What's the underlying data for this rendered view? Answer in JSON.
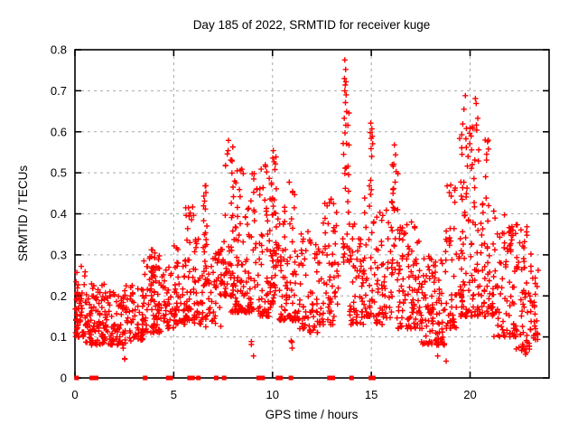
{
  "chart_data": {
    "type": "scatter",
    "title": "Day 185 of 2022, SRMTID for receiver kuge",
    "xlabel": "GPS time / hours",
    "ylabel": "SRMTID / TECUs",
    "xlim": [
      0,
      24
    ],
    "ylim": [
      0,
      0.8
    ],
    "xticks": [
      0,
      5,
      10,
      15,
      20
    ],
    "yticks": [
      0,
      0.1,
      0.2,
      0.3,
      0.4,
      0.5,
      0.6,
      0.7,
      0.8
    ],
    "grid": true,
    "legend": null,
    "marker": {
      "shape": "plus",
      "color": "#ff0000",
      "size": 7
    },
    "colors": {
      "background": "#ffffff",
      "axis": "#000000",
      "grid": "#a8a8a8",
      "points": "#ff0000"
    },
    "series": [
      {
        "name": "SRMTID",
        "peak_points": [
          [
            13.66,
            0.775
          ],
          [
            13.7,
            0.752
          ],
          [
            13.64,
            0.73
          ],
          [
            13.72,
            0.722
          ],
          [
            13.68,
            0.714
          ],
          [
            13.66,
            0.7
          ],
          [
            13.73,
            0.69
          ],
          [
            13.69,
            0.671
          ],
          [
            13.75,
            0.649
          ],
          [
            13.63,
            0.633
          ],
          [
            13.71,
            0.616
          ],
          [
            13.67,
            0.597
          ],
          [
            13.74,
            0.571
          ],
          [
            13.6,
            0.545
          ],
          [
            14.97,
            0.621
          ],
          [
            15.03,
            0.607
          ],
          [
            14.95,
            0.598
          ],
          [
            15.05,
            0.589
          ],
          [
            15.0,
            0.584
          ],
          [
            15.07,
            0.571
          ],
          [
            14.99,
            0.559
          ],
          [
            15.02,
            0.54
          ],
          [
            16.17,
            0.568
          ],
          [
            16.23,
            0.544
          ],
          [
            16.14,
            0.521
          ],
          [
            16.26,
            0.503
          ],
          [
            19.76,
            0.688
          ],
          [
            20.27,
            0.681
          ],
          [
            20.31,
            0.669
          ],
          [
            19.69,
            0.655
          ],
          [
            20.39,
            0.633
          ],
          [
            19.63,
            0.619
          ],
          [
            20.34,
            0.604
          ],
          [
            19.58,
            0.593
          ],
          [
            19.98,
            0.571
          ],
          [
            20.44,
            0.556
          ],
          [
            19.9,
            0.54
          ],
          [
            20.88,
            0.576
          ],
          [
            20.93,
            0.558
          ],
          [
            20.83,
            0.531
          ],
          [
            5.83,
            0.402
          ],
          [
            5.9,
            0.386
          ],
          [
            6.59,
            0.468
          ],
          [
            6.63,
            0.452
          ],
          [
            6.56,
            0.431
          ],
          [
            7.77,
            0.579
          ],
          [
            7.99,
            0.563
          ],
          [
            7.71,
            0.546
          ],
          [
            7.93,
            0.531
          ],
          [
            7.62,
            0.517
          ],
          [
            8.21,
            0.505
          ],
          [
            8.52,
            0.498
          ],
          [
            9.63,
            0.519
          ],
          [
            9.71,
            0.502
          ],
          [
            10.04,
            0.554
          ],
          [
            10.01,
            0.536
          ],
          [
            10.08,
            0.527
          ],
          [
            10.12,
            0.508
          ],
          [
            11.02,
            0.452
          ],
          [
            12.96,
            0.436
          ],
          [
            19.02,
            0.47
          ],
          [
            18.95,
            0.452
          ],
          [
            3.92,
            0.312
          ],
          [
            23.08,
            0.302
          ],
          [
            0.32,
            0.272
          ]
        ],
        "zero_axis_points_hours": [
          0.08,
          0.85,
          0.95,
          1.07,
          3.55,
          4.72,
          4.85,
          5.8,
          5.95,
          6.25,
          7.15,
          7.55,
          9.3,
          9.4,
          9.5,
          10.28,
          10.4,
          10.93,
          12.88,
          13.05,
          14.0,
          14.98,
          15.1
        ],
        "cluster_distribution": {
          "note": "Dense scatter approximated by columns: [x_start, x_end, y_min, y_max, count, bottom_bias_exponent]",
          "columns": [
            [
              0.03,
              0.15,
              0.12,
              0.27,
              12,
              1.2
            ],
            [
              0.0,
              0.6,
              0.1,
              0.27,
              45,
              1.6
            ],
            [
              0.5,
              1.6,
              0.08,
              0.23,
              90,
              1.4
            ],
            [
              1.5,
              2.6,
              0.08,
              0.21,
              75,
              1.3
            ],
            [
              2.4,
              2.6,
              0.04,
              0.08,
              3,
              1.0
            ],
            [
              2.5,
              3.5,
              0.09,
              0.23,
              65,
              1.3
            ],
            [
              3.4,
              4.3,
              0.11,
              0.31,
              70,
              1.5
            ],
            [
              3.7,
              4.05,
              0.2,
              0.33,
              12,
              1.3
            ],
            [
              4.2,
              5.1,
              0.11,
              0.27,
              55,
              1.4
            ],
            [
              5.0,
              5.6,
              0.13,
              0.33,
              40,
              1.5
            ],
            [
              5.6,
              6.1,
              0.14,
              0.42,
              40,
              1.8
            ],
            [
              6.0,
              6.5,
              0.13,
              0.34,
              35,
              1.5
            ],
            [
              6.5,
              6.75,
              0.22,
              0.47,
              22,
              1.6
            ],
            [
              6.6,
              7.4,
              0.12,
              0.31,
              45,
              1.4
            ],
            [
              7.3,
              7.65,
              0.2,
              0.46,
              18,
              1.5
            ],
            [
              7.55,
              8.1,
              0.2,
              0.58,
              30,
              1.9
            ],
            [
              7.9,
              9.35,
              0.16,
              0.52,
              130,
              1.9
            ],
            [
              8.9,
              9.1,
              0.05,
              0.09,
              3,
              1.0
            ],
            [
              9.3,
              9.9,
              0.15,
              0.52,
              55,
              1.8
            ],
            [
              9.9,
              10.25,
              0.18,
              0.555,
              45,
              1.7
            ],
            [
              10.2,
              11.3,
              0.14,
              0.48,
              90,
              1.9
            ],
            [
              10.9,
              11.1,
              0.07,
              0.1,
              3,
              1.0
            ],
            [
              11.3,
              12.5,
              0.11,
              0.36,
              75,
              1.5
            ],
            [
              12.5,
              13.35,
              0.13,
              0.44,
              60,
              1.6
            ],
            [
              13.55,
              13.9,
              0.28,
              0.66,
              26,
              1.3
            ],
            [
              13.85,
              14.6,
              0.13,
              0.38,
              55,
              1.5
            ],
            [
              14.6,
              15.25,
              0.15,
              0.55,
              45,
              1.8
            ],
            [
              15.2,
              16.05,
              0.13,
              0.45,
              60,
              1.7
            ],
            [
              16.05,
              16.35,
              0.25,
              0.545,
              22,
              1.5
            ],
            [
              16.3,
              17.5,
              0.12,
              0.38,
              95,
              1.6
            ],
            [
              17.5,
              18.75,
              0.08,
              0.3,
              100,
              1.4
            ],
            [
              18.3,
              18.8,
              0.04,
              0.09,
              5,
              1.0
            ],
            [
              18.7,
              19.35,
              0.12,
              0.47,
              45,
              1.6
            ],
            [
              19.4,
              20.55,
              0.15,
              0.62,
              110,
              1.9
            ],
            [
              20.55,
              21.2,
              0.15,
              0.58,
              55,
              1.9
            ],
            [
              21.2,
              22.35,
              0.1,
              0.4,
              70,
              1.6
            ],
            [
              22.0,
              22.2,
              0.3,
              0.37,
              10,
              1.2
            ],
            [
              22.3,
              23.05,
              0.07,
              0.38,
              55,
              1.6
            ],
            [
              22.6,
              23.0,
              0.04,
              0.08,
              4,
              1.0
            ],
            [
              23.0,
              23.45,
              0.09,
              0.3,
              30,
              1.5
            ]
          ]
        }
      }
    ]
  }
}
